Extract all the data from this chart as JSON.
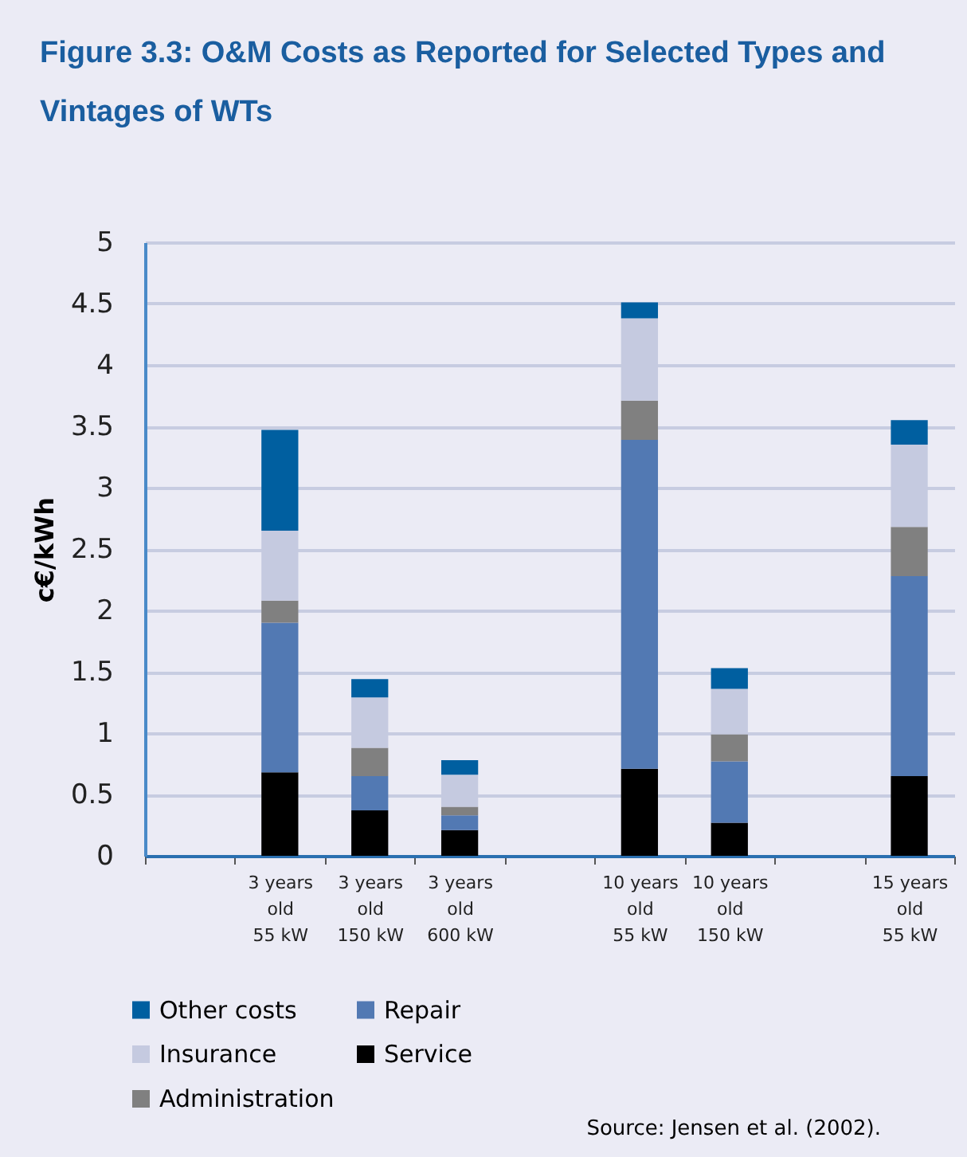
{
  "chart_data": {
    "type": "bar",
    "title": "Figure 3.3: O&M Costs as Reported for Selected Types and Vintages of WTs",
    "ylabel": "c€/kWh",
    "categories": [
      null,
      "3 years old 55 kW",
      "3 years old 150 kW",
      "3 years old 600 kW",
      null,
      "10 years old 55 kW",
      "10 years old 150 kW",
      null,
      "15 years old 55 kW"
    ],
    "series": [
      {
        "name": "Service",
        "color": "#000000",
        "values": [
          null,
          0.68,
          0.37,
          0.21,
          null,
          0.71,
          0.27,
          null,
          0.65
        ]
      },
      {
        "name": "Repair",
        "color": "#5279b3",
        "values": [
          null,
          1.22,
          0.28,
          0.12,
          null,
          2.68,
          0.5,
          null,
          1.63
        ]
      },
      {
        "name": "Administration",
        "color": "#808080",
        "values": [
          null,
          0.18,
          0.23,
          0.07,
          null,
          0.32,
          0.22,
          null,
          0.4
        ]
      },
      {
        "name": "Insurance",
        "color": "#c5cae0",
        "values": [
          null,
          0.57,
          0.41,
          0.26,
          null,
          0.67,
          0.37,
          null,
          0.67
        ]
      },
      {
        "name": "Other costs",
        "color": "#005fa0",
        "values": [
          null,
          0.82,
          0.15,
          0.12,
          null,
          0.13,
          0.17,
          null,
          0.2
        ]
      }
    ],
    "stacked": true,
    "ylim": [
      0,
      5
    ],
    "yticks": [
      0,
      0.5,
      1,
      1.5,
      2,
      2.5,
      3,
      3.5,
      4,
      4.5,
      5
    ],
    "grid": "y",
    "legend": "bottom left",
    "annotations": [
      "Source: Jensen et al. (2002)."
    ]
  }
}
